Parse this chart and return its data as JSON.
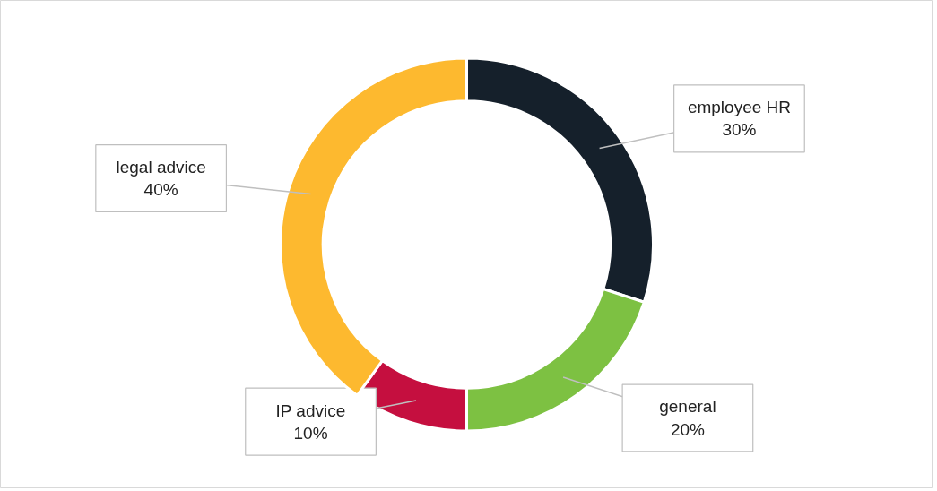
{
  "chart_data": {
    "type": "donut",
    "categories": [
      "employee HR",
      "general",
      "IP advice",
      "legal advice"
    ],
    "values": [
      30,
      20,
      10,
      40
    ],
    "colors": [
      "#15202b",
      "#7dc142",
      "#c50f3f",
      "#fdb92f"
    ],
    "value_labels": [
      "30%",
      "20%",
      "10%",
      "40%"
    ]
  }
}
